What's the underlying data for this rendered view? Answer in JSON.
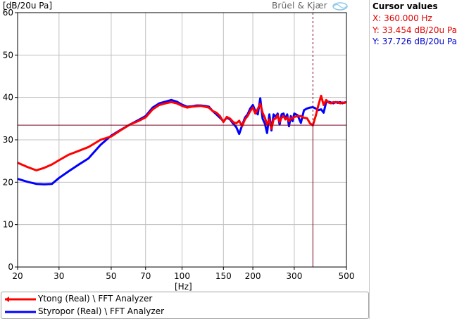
{
  "window": {
    "ylabel": "[dB/20u Pa]",
    "brand": "Brüel & Kjær",
    "xunit": "[Hz]"
  },
  "cursor_panel": {
    "title": "Cursor values",
    "x_text": "X: 360.000 Hz",
    "y1_text": "Y: 33.454 dB/20u Pa",
    "y2_text": "Y: 37.726 dB/20u Pa",
    "x_color": "#e00000",
    "y1_color": "#e00000",
    "y2_color": "#0000cc"
  },
  "legend": [
    {
      "label": "Ytong (Real) \\ FFT Analyzer",
      "color": "#ff0000"
    },
    {
      "label": "Styropor (Real) \\ FFT Analyzer",
      "color": "#0000ff"
    }
  ],
  "chart_data": {
    "type": "line",
    "title": "",
    "xlabel": "[Hz]",
    "ylabel": "[dB/20u Pa]",
    "x_scale": "log",
    "xlim": [
      20,
      500
    ],
    "ylim": [
      0,
      60
    ],
    "x_ticks": [
      20,
      30,
      50,
      70,
      100,
      150,
      200,
      300,
      500
    ],
    "y_ticks": [
      0,
      10,
      20,
      30,
      40,
      50,
      60
    ],
    "grid": true,
    "legend_position": "bottom",
    "cursor": {
      "x": 360,
      "y": 33.454
    },
    "series": [
      {
        "name": "Ytong (Real) \\ FFT Analyzer",
        "color": "#ff0000",
        "x": [
          20,
          22,
          24,
          26,
          28,
          30,
          33,
          36,
          40,
          45,
          50,
          55,
          60,
          65,
          70,
          75,
          80,
          85,
          90,
          95,
          100,
          105,
          110,
          115,
          120,
          125,
          130,
          135,
          140,
          145,
          150,
          155,
          160,
          165,
          170,
          175,
          180,
          185,
          190,
          195,
          200,
          205,
          210,
          215,
          220,
          225,
          230,
          235,
          240,
          245,
          250,
          255,
          260,
          265,
          270,
          275,
          280,
          285,
          290,
          295,
          300,
          310,
          320,
          330,
          340,
          350,
          360,
          370,
          380,
          390,
          400,
          410,
          420,
          430,
          440,
          450,
          460,
          470,
          480,
          490,
          500
        ],
        "values": [
          24.6,
          23.6,
          22.8,
          23.4,
          24.2,
          25.2,
          26.5,
          27.3,
          28.3,
          30.0,
          30.8,
          32.3,
          33.6,
          34.4,
          35.3,
          37.2,
          38.2,
          38.6,
          38.9,
          38.6,
          38.0,
          37.6,
          37.8,
          37.9,
          38.0,
          37.8,
          37.6,
          36.8,
          36.4,
          35.6,
          34.2,
          35.4,
          35.0,
          34.2,
          33.9,
          34.5,
          33.2,
          34.8,
          35.6,
          36.8,
          37.6,
          36.2,
          37.3,
          38.5,
          36.4,
          35.2,
          33.6,
          34.8,
          32.6,
          34.8,
          35.0,
          35.8,
          34.2,
          35.2,
          35.6,
          34.8,
          35.3,
          34.4,
          35.1,
          35.0,
          35.4,
          35.6,
          35.6,
          35.2,
          35.1,
          33.9,
          33.4,
          35.6,
          38.2,
          40.4,
          38.2,
          39.4,
          38.8,
          38.6,
          38.9,
          38.8,
          38.9,
          38.6,
          38.8,
          38.7,
          38.9
        ]
      },
      {
        "name": "Styropor (Real) \\ FFT Analyzer",
        "color": "#0000ff",
        "x": [
          20,
          22,
          24,
          26,
          28,
          30,
          33,
          36,
          40,
          45,
          50,
          55,
          60,
          65,
          70,
          75,
          80,
          85,
          90,
          95,
          100,
          105,
          110,
          115,
          120,
          125,
          130,
          135,
          140,
          145,
          150,
          155,
          160,
          165,
          170,
          175,
          180,
          185,
          190,
          195,
          200,
          205,
          210,
          215,
          220,
          225,
          230,
          235,
          240,
          245,
          250,
          255,
          260,
          265,
          270,
          275,
          280,
          285,
          290,
          295,
          300,
          310,
          320,
          330,
          340,
          350,
          360,
          370,
          380,
          390,
          400,
          410,
          420,
          430,
          440,
          450,
          460,
          470,
          480,
          490,
          500
        ],
        "values": [
          20.8,
          20.1,
          19.6,
          19.5,
          19.6,
          21.0,
          22.6,
          24.0,
          25.6,
          28.8,
          31.0,
          32.4,
          33.6,
          34.6,
          35.6,
          37.6,
          38.6,
          39.0,
          39.4,
          39.0,
          38.3,
          37.8,
          37.9,
          38.1,
          38.1,
          38.0,
          37.8,
          36.8,
          36.0,
          35.2,
          34.4,
          35.2,
          34.8,
          33.8,
          33.0,
          31.4,
          33.4,
          35.2,
          36.0,
          37.4,
          38.2,
          36.8,
          36.0,
          39.8,
          35.0,
          33.8,
          31.6,
          36.0,
          32.2,
          36.0,
          35.4,
          36.2,
          33.6,
          36.0,
          36.2,
          35.0,
          36.0,
          33.2,
          35.6,
          34.4,
          36.2,
          35.8,
          34.0,
          37.0,
          37.4,
          37.6,
          37.7,
          37.4,
          37.0,
          37.2,
          36.4,
          38.9,
          39.0,
          38.8,
          38.6,
          38.9,
          38.7,
          38.9,
          38.6,
          38.8,
          38.9
        ]
      }
    ]
  }
}
